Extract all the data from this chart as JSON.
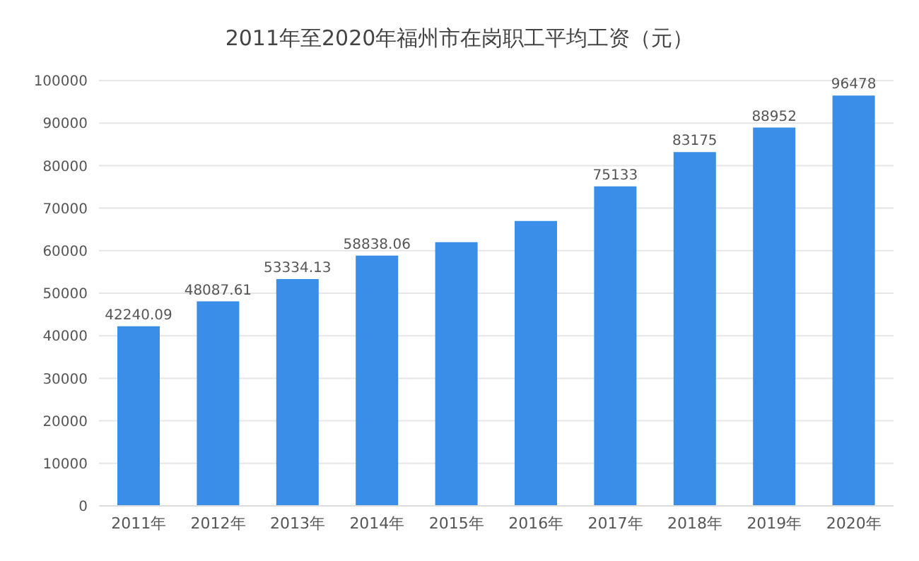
{
  "chart_data": {
    "type": "bar",
    "title": "2011年至2020年福州市在岗职工平均工资（元）",
    "categories": [
      "2011年",
      "2012年",
      "2013年",
      "2014年",
      "2015年",
      "2016年",
      "2017年",
      "2018年",
      "2019年",
      "2020年"
    ],
    "values": [
      42240.09,
      48087.61,
      53334.13,
      58838.06,
      62000,
      67000,
      75133,
      83175,
      88952,
      96478
    ],
    "value_labels": [
      "42240.09",
      "48087.61",
      "53334.13",
      "58838.06",
      null,
      null,
      "75133",
      "83175",
      "88952",
      "96478"
    ],
    "color": "#3a8ee8",
    "ylim": [
      0,
      100000
    ],
    "yticks": [
      0,
      10000,
      20000,
      30000,
      40000,
      50000,
      60000,
      70000,
      80000,
      90000,
      100000
    ],
    "grid": "y"
  }
}
